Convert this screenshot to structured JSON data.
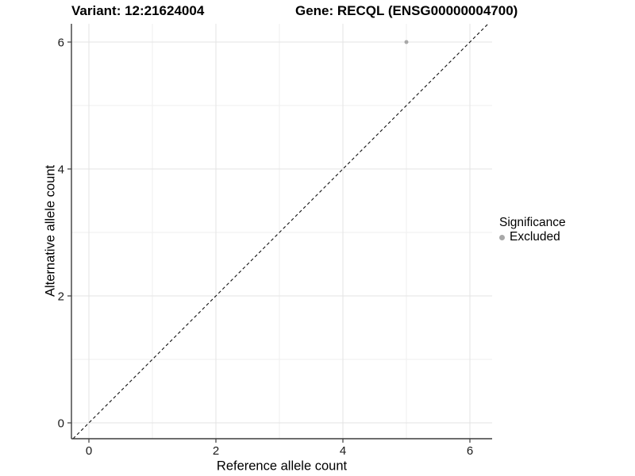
{
  "header": {
    "title_left": "Variant: 12:21624004",
    "title_right": "Gene: RECQL (ENSG00000004700)"
  },
  "chart_data": {
    "type": "scatter",
    "title": "Variant: 12:21624004 — Gene: RECQL (ENSG00000004700)",
    "xlabel": "Reference allele count",
    "ylabel": "Alternative allele count",
    "xlim": [
      -0.275,
      6.35
    ],
    "ylim": [
      -0.25,
      6.2875
    ],
    "x_major_ticks": [
      0,
      2,
      4,
      6
    ],
    "y_major_ticks": [
      0,
      2,
      4,
      6
    ],
    "x_minor_ticks": [
      1,
      3,
      5
    ],
    "y_minor_ticks": [
      1,
      3,
      5
    ],
    "grid": true,
    "series": [
      {
        "name": "Excluded",
        "color": "#a8a8a8",
        "points": [
          {
            "x": 5,
            "y": 6
          }
        ]
      }
    ],
    "reference_line": {
      "type": "identity-diagonal",
      "style": "dashed",
      "color": "#111111"
    },
    "legend": {
      "title": "Significance",
      "position": "right",
      "items": [
        {
          "label": "Excluded",
          "color": "#a8a8a8"
        }
      ]
    }
  },
  "colors": {
    "background": "#ffffff",
    "grid_major": "#e3e3e3",
    "grid_minor": "#efefef",
    "axis_line": "#3d3d3d",
    "tick_text": "#1a1a1a",
    "dashed_line": "#111111",
    "point": "#a8a8a8"
  }
}
